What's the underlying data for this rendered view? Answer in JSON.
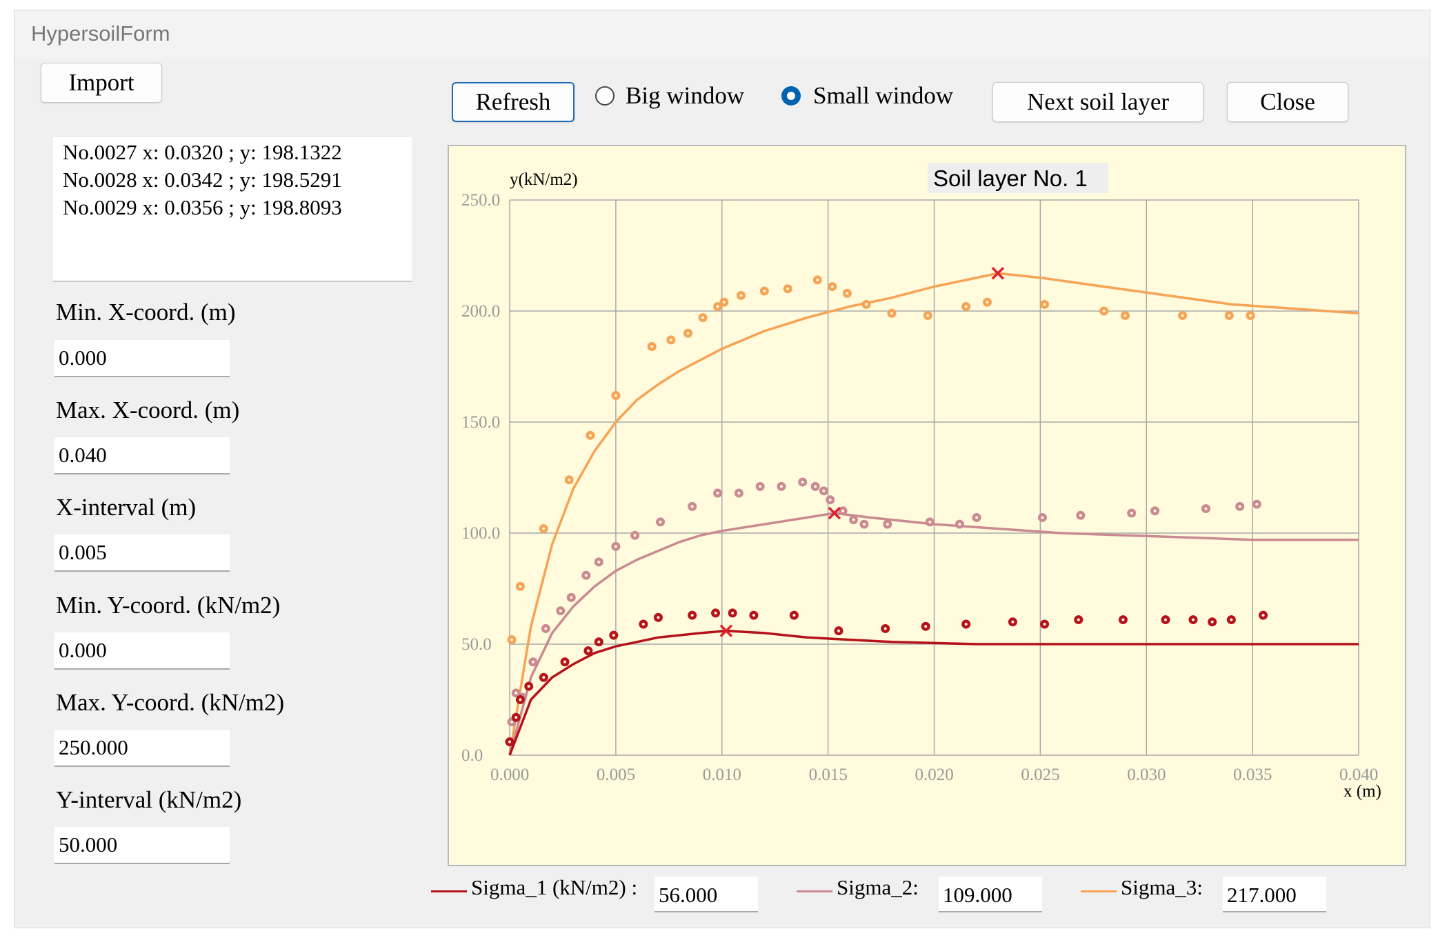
{
  "window": {
    "title": "HypersoilForm"
  },
  "toolbar": {
    "import_label": "Import",
    "refresh_label": "Refresh",
    "big_window_label": "Big window",
    "small_window_label": "Small window",
    "selected_window": "Small window",
    "next_layer_label": "Next soil layer",
    "close_label": "Close"
  },
  "points_list": [
    "No.0027 x: 0.0320 ; y: 198.1322",
    "No.0028 x: 0.0342 ; y: 198.5291",
    "No.0029 x: 0.0356 ; y: 198.8093"
  ],
  "settings": {
    "min_x_label": "Min. X-coord.  (m)",
    "min_x_value": "0.000",
    "max_x_label": "Max. X-coord.  (m)",
    "max_x_value": "0.040",
    "x_interval_label": "X-interval  (m)",
    "x_interval_value": "0.005",
    "min_y_label": "Min. Y-coord. (kN/m2)",
    "min_y_value": "0.000",
    "max_y_label": "Max. Y-coord. (kN/m2)",
    "max_y_value": "250.000",
    "y_interval_label": "Y-interval (kN/m2)",
    "y_interval_value": "50.000"
  },
  "legend": {
    "sigma1_label": "Sigma_1 (kN/m2) :",
    "sigma1_value": "56.000",
    "sigma2_label": "Sigma_2:",
    "sigma2_value": "109.000",
    "sigma3_label": "Sigma_3:",
    "sigma3_value": "217.000"
  },
  "colors": {
    "sigma1": "#b5121b",
    "sigma2": "#c98a92",
    "sigma3": "#f7a355",
    "peak_marker": "#e0202a",
    "grid": "#a9a9a9",
    "plot_bg": "#fffbdc"
  },
  "chart_data": {
    "type": "scatter",
    "title": "Soil layer No. 1",
    "xlabel": "x (m)",
    "ylabel": "y(kN/m2)",
    "xlim": [
      0,
      0.04
    ],
    "ylim": [
      0,
      250
    ],
    "x_ticks": [
      "0.000",
      "0.005",
      "0.010",
      "0.015",
      "0.020",
      "0.025",
      "0.030",
      "0.035",
      "0.040"
    ],
    "y_ticks": [
      "0.0",
      "50.0",
      "100.0",
      "150.0",
      "200.0",
      "250.0"
    ],
    "grid": true,
    "series": [
      {
        "key": "sigma3",
        "points": [
          [
            0.0001,
            52
          ],
          [
            0.0005,
            76
          ],
          [
            0.0016,
            102
          ],
          [
            0.0028,
            124
          ],
          [
            0.0038,
            144
          ],
          [
            0.005,
            162
          ],
          [
            0.0067,
            184
          ],
          [
            0.0076,
            187
          ],
          [
            0.0084,
            190
          ],
          [
            0.0091,
            197
          ],
          [
            0.0098,
            202
          ],
          [
            0.0101,
            204
          ],
          [
            0.0109,
            207
          ],
          [
            0.012,
            209
          ],
          [
            0.0131,
            210
          ],
          [
            0.0145,
            214
          ],
          [
            0.0152,
            211
          ],
          [
            0.0159,
            208
          ],
          [
            0.0168,
            203
          ],
          [
            0.018,
            199
          ],
          [
            0.0197,
            198
          ],
          [
            0.0215,
            202
          ],
          [
            0.0225,
            204
          ],
          [
            0.0252,
            203
          ],
          [
            0.028,
            200
          ],
          [
            0.029,
            198
          ],
          [
            0.0317,
            198
          ],
          [
            0.0339,
            198
          ],
          [
            0.0349,
            198
          ]
        ],
        "curve": [
          [
            0,
            0
          ],
          [
            0.001,
            58
          ],
          [
            0.002,
            95
          ],
          [
            0.003,
            120
          ],
          [
            0.004,
            137
          ],
          [
            0.005,
            150
          ],
          [
            0.006,
            160
          ],
          [
            0.007,
            167
          ],
          [
            0.008,
            173
          ],
          [
            0.009,
            178
          ],
          [
            0.01,
            183
          ],
          [
            0.012,
            191
          ],
          [
            0.014,
            197
          ],
          [
            0.016,
            202
          ],
          [
            0.018,
            206
          ],
          [
            0.02,
            211
          ],
          [
            0.023,
            217
          ],
          [
            0.025,
            215
          ],
          [
            0.028,
            211
          ],
          [
            0.031,
            207
          ],
          [
            0.034,
            203
          ],
          [
            0.037,
            201
          ],
          [
            0.04,
            199
          ]
        ],
        "peak": [
          0.023,
          217
        ]
      },
      {
        "key": "sigma2",
        "points": [
          [
            0.0001,
            15
          ],
          [
            0.0003,
            28
          ],
          [
            0.0006,
            26
          ],
          [
            0.0011,
            42
          ],
          [
            0.0017,
            57
          ],
          [
            0.0024,
            65
          ],
          [
            0.0029,
            71
          ],
          [
            0.0036,
            81
          ],
          [
            0.0042,
            87
          ],
          [
            0.005,
            94
          ],
          [
            0.0059,
            99
          ],
          [
            0.0071,
            105
          ],
          [
            0.0086,
            112
          ],
          [
            0.0098,
            118
          ],
          [
            0.0108,
            118
          ],
          [
            0.0118,
            121
          ],
          [
            0.0128,
            121
          ],
          [
            0.0138,
            123
          ],
          [
            0.0144,
            121
          ],
          [
            0.0148,
            119
          ],
          [
            0.0151,
            115
          ],
          [
            0.0157,
            110
          ],
          [
            0.0162,
            106
          ],
          [
            0.0167,
            104
          ],
          [
            0.0178,
            104
          ],
          [
            0.0198,
            105
          ],
          [
            0.0212,
            104
          ],
          [
            0.022,
            107
          ],
          [
            0.0251,
            107
          ],
          [
            0.0269,
            108
          ],
          [
            0.0293,
            109
          ],
          [
            0.0304,
            110
          ],
          [
            0.0328,
            111
          ],
          [
            0.0344,
            112
          ],
          [
            0.0352,
            113
          ]
        ],
        "curve": [
          [
            0,
            0
          ],
          [
            0.001,
            35
          ],
          [
            0.002,
            55
          ],
          [
            0.003,
            67
          ],
          [
            0.004,
            76
          ],
          [
            0.005,
            83
          ],
          [
            0.006,
            88
          ],
          [
            0.007,
            92
          ],
          [
            0.008,
            96
          ],
          [
            0.009,
            99
          ],
          [
            0.01,
            101
          ],
          [
            0.012,
            104
          ],
          [
            0.014,
            107
          ],
          [
            0.0153,
            109
          ],
          [
            0.017,
            107
          ],
          [
            0.02,
            104
          ],
          [
            0.023,
            102
          ],
          [
            0.026,
            100
          ],
          [
            0.029,
            99
          ],
          [
            0.032,
            98
          ],
          [
            0.035,
            97
          ],
          [
            0.04,
            97
          ]
        ],
        "peak": [
          0.0153,
          109
        ]
      },
      {
        "key": "sigma1",
        "points": [
          [
            0,
            6
          ],
          [
            0.0003,
            17
          ],
          [
            0.0005,
            25
          ],
          [
            0.0009,
            31
          ],
          [
            0.0016,
            35
          ],
          [
            0.0026,
            42
          ],
          [
            0.0037,
            47
          ],
          [
            0.0042,
            51
          ],
          [
            0.0049,
            54
          ],
          [
            0.0063,
            59
          ],
          [
            0.007,
            62
          ],
          [
            0.0086,
            63
          ],
          [
            0.0097,
            64
          ],
          [
            0.0105,
            64
          ],
          [
            0.0115,
            63
          ],
          [
            0.0134,
            63
          ],
          [
            0.0155,
            56
          ],
          [
            0.0177,
            57
          ],
          [
            0.0196,
            58
          ],
          [
            0.0215,
            59
          ],
          [
            0.0237,
            60
          ],
          [
            0.0252,
            59
          ],
          [
            0.0268,
            61
          ],
          [
            0.0289,
            61
          ],
          [
            0.0309,
            61
          ],
          [
            0.0322,
            61
          ],
          [
            0.0331,
            60
          ],
          [
            0.034,
            61
          ],
          [
            0.0355,
            63
          ]
        ],
        "curve": [
          [
            0,
            0
          ],
          [
            0.001,
            25
          ],
          [
            0.002,
            35
          ],
          [
            0.003,
            41
          ],
          [
            0.004,
            46
          ],
          [
            0.005,
            49
          ],
          [
            0.006,
            51
          ],
          [
            0.007,
            53
          ],
          [
            0.008,
            54
          ],
          [
            0.009,
            55
          ],
          [
            0.0102,
            56
          ],
          [
            0.012,
            55
          ],
          [
            0.014,
            53
          ],
          [
            0.016,
            52
          ],
          [
            0.018,
            51
          ],
          [
            0.022,
            50
          ],
          [
            0.026,
            50
          ],
          [
            0.03,
            50
          ],
          [
            0.034,
            50
          ],
          [
            0.04,
            50
          ]
        ],
        "peak": [
          0.0102,
          56
        ]
      }
    ]
  }
}
